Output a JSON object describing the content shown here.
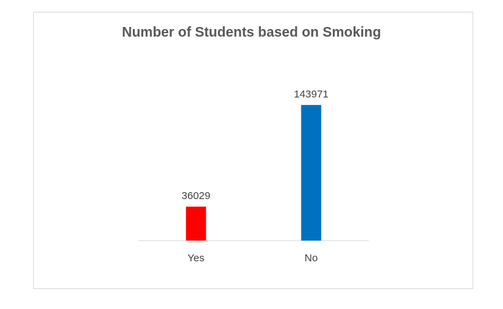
{
  "chart_data": {
    "type": "bar",
    "title": "Number of Students based on Smoking",
    "categories": [
      "Yes",
      "No"
    ],
    "values": [
      36029,
      143971
    ],
    "colors": [
      "#ff0000",
      "#0070c0"
    ],
    "xlabel": "",
    "ylabel": "",
    "ylim": [
      0,
      160000
    ],
    "grid": false,
    "legend": "none",
    "data_labels": true
  }
}
